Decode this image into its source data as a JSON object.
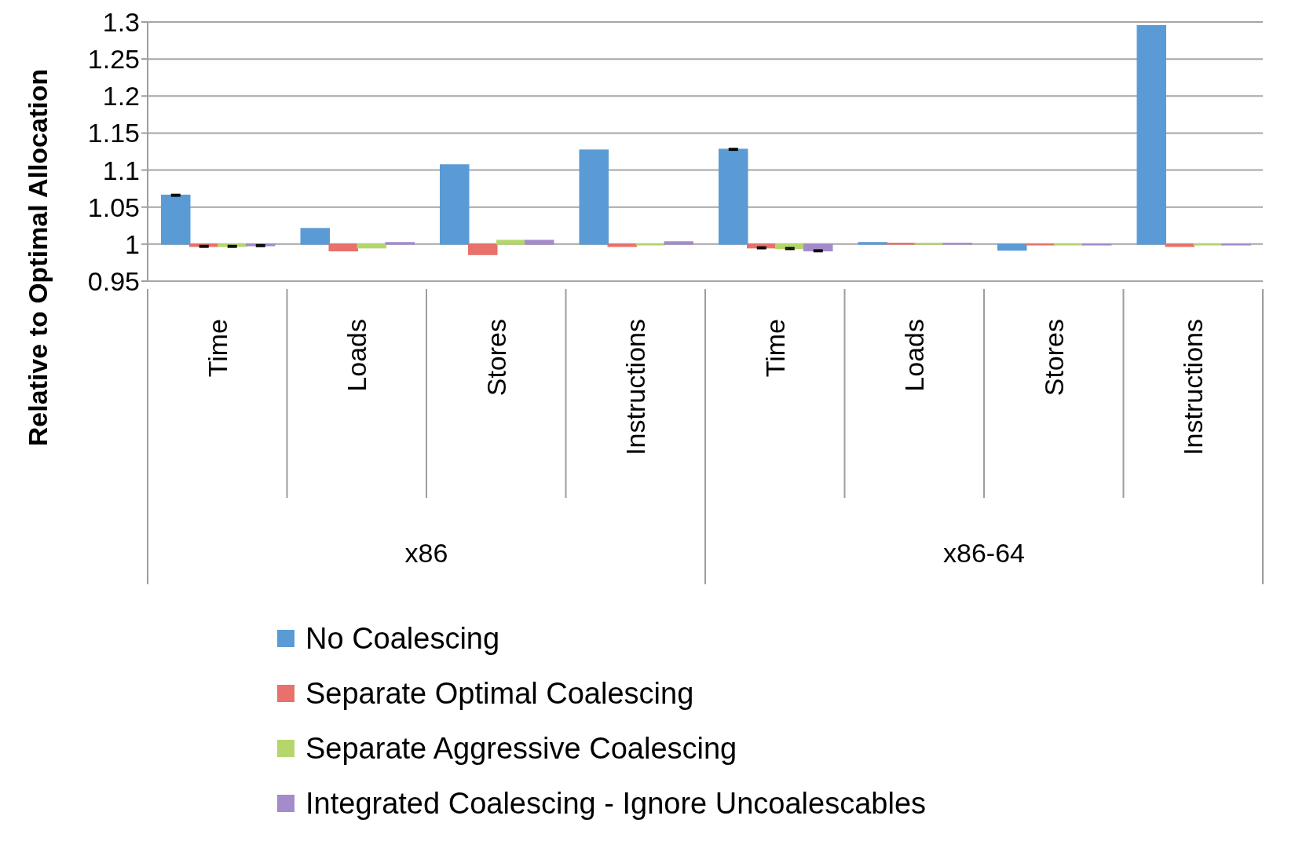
{
  "chart_data": {
    "type": "bar",
    "ylabel": "Relative to Optimal Allocation",
    "categories": [
      "Time",
      "Loads",
      "Stores",
      "Instructions",
      "Time",
      "Loads",
      "Stores",
      "Instructions"
    ],
    "annotations": [
      "x86",
      "x86-64"
    ],
    "series": [
      {
        "name": "No Coalescing",
        "color": "#5b9bd5",
        "base": [
          1,
          1,
          1,
          1,
          1,
          1,
          1,
          1
        ],
        "values": [
          0.066,
          0.021,
          0.107,
          0.127,
          0.128,
          0.002,
          -0.008,
          0.295
        ],
        "errors": [
          0.001,
          null,
          null,
          null,
          0.001,
          null,
          null,
          null
        ]
      },
      {
        "name": "Separate Optimal Coalescing",
        "color": "#e8716b",
        "base": [
          1,
          1,
          1,
          1,
          1,
          1,
          1,
          1
        ],
        "values": [
          -0.003,
          -0.009,
          -0.014,
          -0.003,
          -0.005,
          0.001,
          -0.001,
          -0.003
        ],
        "errors": [
          0.001,
          null,
          null,
          null,
          0.001,
          null,
          null,
          null
        ]
      },
      {
        "name": "Separate Aggressive Coalescing",
        "color": "#b5d66b",
        "base": [
          1,
          1,
          1,
          1,
          1,
          1,
          1,
          1
        ],
        "values": [
          -0.003,
          -0.005,
          0.005,
          -0.001,
          -0.006,
          0.001,
          -0.001,
          -0.001
        ],
        "errors": [
          0.001,
          null,
          null,
          null,
          0.001,
          null,
          null,
          null
        ]
      },
      {
        "name": "Integrated Coalescing - Ignore Uncoalescables",
        "color": "#a48bc9",
        "base": [
          1,
          1,
          1,
          1,
          1,
          1,
          1,
          1
        ],
        "values": [
          -0.002,
          0.002,
          0.005,
          0.003,
          -0.009,
          0.001,
          -0.001,
          -0.001
        ],
        "errors": [
          0.001,
          null,
          null,
          null,
          0.001,
          null,
          null,
          null
        ]
      }
    ],
    "ylim": [
      0.95,
      1.3
    ],
    "yticks": [
      0.95,
      1,
      1.05,
      1.1,
      1.15,
      1.2,
      1.25,
      1.3
    ],
    "grid": "y",
    "legend": "bottom"
  }
}
